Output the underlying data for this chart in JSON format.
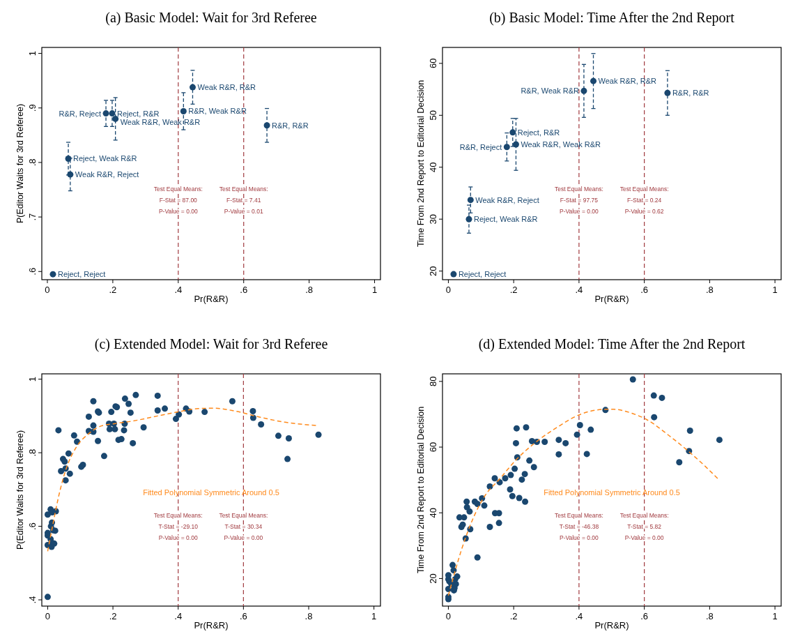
{
  "chart_data": [
    {
      "type": "scatter",
      "title": "(a) Basic Model: Wait for 3rd Referee",
      "xlabel": "Pr(R&R)",
      "ylabel": "P(Editor Waits for 3rd Referee)",
      "marker": "circle",
      "xlim": [
        -0.017,
        1.018
      ],
      "xticks": [
        {
          "value": 0,
          "label": "0"
        },
        {
          "value": 0.2,
          "label": ".2"
        },
        {
          "value": 0.4,
          "label": ".4"
        },
        {
          "value": 0.6,
          "label": ".6"
        },
        {
          "value": 0.8,
          "label": ".8"
        },
        {
          "value": 1,
          "label": "1"
        }
      ],
      "ylim": [
        0.585,
        1.011
      ],
      "yticks": [
        {
          "value": 0.6,
          "label": ".6"
        },
        {
          "value": 0.7,
          "label": ".7"
        },
        {
          "value": 0.8,
          "label": ".8"
        },
        {
          "value": 0.9,
          "label": ".9"
        },
        {
          "value": 1,
          "label": "1"
        }
      ],
      "series": [
        {
          "type": "scatter",
          "color": "#1a476f",
          "x": [
            0.017,
            0.064,
            0.07,
            0.179,
            0.198,
            0.208,
            0.416,
            0.444,
            0.671
          ],
          "values": [
            0.595,
            0.807,
            0.778,
            0.89,
            0.89,
            0.88,
            0.894,
            0.938,
            0.868
          ],
          "errors": [
            null,
            0.03,
            0.03,
            0.024,
            0.024,
            0.039,
            0.034,
            0.031,
            0.031
          ]
        }
      ],
      "annotations": [
        "Test Equal Means:\nF-Stat = 87.00\nP-Value = 0.00",
        "Test Equal Means:\nF-Stat = 7.41\nP-Value = 0.01",
        {
          "text": "Reject, Reject",
          "x": 0.017,
          "y": 0.595
        },
        {
          "text": "Reject, Weak R&R",
          "x": 0.064,
          "y": 0.807
        },
        {
          "text": "Weak R&R, Reject",
          "x": 0.07,
          "y": 0.778
        },
        {
          "text": "R&R, Reject",
          "x": 0.179,
          "y": 0.89
        },
        {
          "text": "Reject, R&R",
          "x": 0.198,
          "y": 0.89
        },
        {
          "text": "Weak R&R, Weak R&R",
          "x": 0.208,
          "y": 0.88
        },
        {
          "text": "R&R, Weak R&R",
          "x": 0.416,
          "y": 0.894
        },
        {
          "text": "Weak R&R, R&R",
          "x": 0.444,
          "y": 0.938
        },
        {
          "text": "R&R, R&R",
          "x": 0.671,
          "y": 0.868
        }
      ],
      "ref_lines": [
        {
          "axis": "x",
          "value": 0.4,
          "color": "#a0393e",
          "line_style": "dashed"
        },
        {
          "axis": "x",
          "value": 0.6,
          "color": "#a0393e",
          "line_style": "dashed"
        }
      ]
    },
    {
      "type": "scatter",
      "title": "(b) Basic Model: Time After the 2nd Report",
      "xlabel": "Pr(R&R)",
      "ylabel": "Time From 2nd Report to Editorial Decision",
      "marker": "circle",
      "xlim": [
        -0.018,
        1.019
      ],
      "xticks": [
        {
          "value": 0,
          "label": "0"
        },
        {
          "value": 0.2,
          "label": ".2"
        },
        {
          "value": 0.4,
          "label": ".4"
        },
        {
          "value": 0.6,
          "label": ".6"
        },
        {
          "value": 0.8,
          "label": ".8"
        },
        {
          "value": 1,
          "label": "1"
        }
      ],
      "ylim": [
        18.34,
        63.07
      ],
      "yticks": [
        20,
        30,
        40,
        50,
        60
      ],
      "series": [
        {
          "type": "scatter",
          "color": "#1a476f",
          "x": [
            0.016,
            0.063,
            0.068,
            0.179,
            0.197,
            0.207,
            0.415,
            0.444,
            0.671
          ],
          "values": [
            19.4,
            30.0,
            33.7,
            43.9,
            46.7,
            44.4,
            54.7,
            56.6,
            54.3
          ],
          "errors": [
            null,
            2.7,
            2.5,
            2.7,
            2.7,
            5.0,
            5.1,
            5.3,
            4.3
          ]
        }
      ],
      "annotations": [
        "Test Equal Means:\nF-Stat = 97.75\nP-Value = 0.00",
        "Test Equal Means:\nF-Stat = 0.24\nP-Value = 0.62",
        {
          "text": "Reject, Reject",
          "x": 0.016,
          "y": 19.4
        },
        {
          "text": "Reject, Weak R&R",
          "x": 0.063,
          "y": 30.0
        },
        {
          "text": "Weak R&R, Reject",
          "x": 0.068,
          "y": 33.7
        },
        {
          "text": "R&R, Reject",
          "x": 0.179,
          "y": 43.9
        },
        {
          "text": "Reject, R&R",
          "x": 0.197,
          "y": 46.7
        },
        {
          "text": "Weak R&R, Weak R&R",
          "x": 0.207,
          "y": 44.4
        },
        {
          "text": "R&R, Weak R&R",
          "x": 0.415,
          "y": 54.7
        },
        {
          "text": "Weak R&R, R&R",
          "x": 0.444,
          "y": 56.6
        },
        {
          "text": "R&R, R&R",
          "x": 0.671,
          "y": 54.3
        }
      ],
      "ref_lines": [
        {
          "axis": "x",
          "value": 0.4,
          "color": "#a0393e",
          "line_style": "dashed"
        },
        {
          "axis": "x",
          "value": 0.6,
          "color": "#a0393e",
          "line_style": "dashed"
        }
      ]
    },
    {
      "type": "scatter",
      "title": "(c) Extended Model: Wait for 3rd Referee",
      "xlabel": "Pr(R&R)",
      "ylabel": "P(Editor Waits for 3rd Referee)",
      "marker": "circle",
      "xlim": [
        -0.018,
        1.02
      ],
      "xticks": [
        {
          "value": 0,
          "label": "0"
        },
        {
          "value": 0.2,
          "label": ".2"
        },
        {
          "value": 0.4,
          "label": ".4"
        },
        {
          "value": 0.6,
          "label": ".6"
        },
        {
          "value": 0.8,
          "label": ".8"
        },
        {
          "value": 1,
          "label": "1"
        }
      ],
      "ylim": [
        0.383,
        1.0145
      ],
      "yticks": [
        {
          "value": 0.4,
          "label": ".4"
        },
        {
          "value": 0.6,
          "label": ".6"
        },
        {
          "value": 0.8,
          "label": ".8"
        },
        {
          "value": 1,
          "label": "1"
        }
      ],
      "series": [
        {
          "type": "scatter",
          "color": "#1a476f",
          "x": [
            0,
            0,
            0,
            0,
            0,
            0.009,
            0.014,
            0.013,
            0.01,
            0.017,
            0.023,
            0.009,
            0.013,
            0.012,
            0.02,
            0.025,
            0.033,
            0.041,
            0.047,
            0.052,
            0.055,
            0.055,
            0.064,
            0.068,
            0.081,
            0.09,
            0.103,
            0.108,
            0.126,
            0.126,
            0.14,
            0.14,
            0.14,
            0.154,
            0.157,
            0.154,
            0.173,
            0.188,
            0.19,
            0.195,
            0.203,
            0.206,
            0.208,
            0.212,
            0.217,
            0.226,
            0.236,
            0.234,
            0.237,
            0.248,
            0.254,
            0.261,
            0.27,
            0.294,
            0.337,
            0.337,
            0.359,
            0.393,
            0.402,
            0.424,
            0.434,
            0.481,
            0.566,
            0.629,
            0.63,
            0.654,
            0.707,
            0.739,
            0.735,
            0.83
          ],
          "values": [
            0.408,
            0.632,
            0.582,
            0.575,
            0.549,
            0.646,
            0.638,
            0.61,
            0.6,
            0.589,
            0.588,
            0.565,
            0.555,
            0.544,
            0.553,
            0.641,
            0.861,
            0.75,
            0.783,
            0.776,
            0.757,
            0.725,
            0.798,
            0.743,
            0.847,
            0.83,
            0.762,
            0.767,
            0.898,
            0.859,
            0.874,
            0.857,
            0.94,
            0.912,
            0.909,
            0.832,
            0.791,
            0.879,
            0.864,
            0.911,
            0.879,
            0.864,
            0.926,
            0.924,
            0.835,
            0.837,
            0.879,
            0.861,
            0.947,
            0.933,
            0.909,
            0.826,
            0.957,
            0.869,
            0.955,
            0.915,
            0.92,
            0.892,
            0.904,
            0.92,
            0.912,
            0.911,
            0.94,
            0.913,
            0.895,
            0.877,
            0.846,
            0.839,
            0.783,
            0.849
          ]
        },
        {
          "type": "line",
          "name": "Fitted Polynomial Symmetric Around 0.5",
          "color": "#ff8a1c",
          "line_style": "dashed",
          "marker": "none",
          "x": [
            0,
            0.017,
            0.033,
            0.056,
            0.087,
            0.126,
            0.165,
            0.204,
            0.259,
            0.337,
            0.399,
            0.462,
            0.509,
            0.571,
            0.649,
            0.727,
            0.824
          ],
          "values": [
            0.532,
            0.61,
            0.679,
            0.755,
            0.814,
            0.852,
            0.873,
            0.879,
            0.886,
            0.9,
            0.911,
            0.92,
            0.921,
            0.914,
            0.897,
            0.883,
            0.874
          ]
        }
      ],
      "annotations": [
        "Test Equal Means:\nT-Stat = -29.10\nP-Value = 0.00",
        "Test Equal Means:\nT-Stat = 30.34\nP-Value = 0.00"
      ],
      "ref_lines": [
        {
          "axis": "x",
          "value": 0.4,
          "color": "#a0393e",
          "line_style": "dashed"
        },
        {
          "axis": "x",
          "value": 0.6,
          "color": "#a0393e",
          "line_style": "dashed"
        }
      ]
    },
    {
      "type": "scatter",
      "title": "(d) Extended Model: Time After the 2nd Report",
      "xlabel": "Pr(R&R)",
      "ylabel": "Time From 2nd Report to Editorial Decision",
      "marker": "circle",
      "xlim": [
        -0.018,
        1.019
      ],
      "xticks": [
        {
          "value": 0,
          "label": "0"
        },
        {
          "value": 0.2,
          "label": ".2"
        },
        {
          "value": 0.4,
          "label": ".4"
        },
        {
          "value": 0.6,
          "label": ".6"
        },
        {
          "value": 0.8,
          "label": ".8"
        },
        {
          "value": 1,
          "label": "1"
        }
      ],
      "ylim": [
        11.6,
        82.3
      ],
      "yticks": [
        20,
        40,
        60,
        80
      ],
      "series": [
        {
          "type": "scatter",
          "color": "#1a476f",
          "x": [
            0,
            0,
            0,
            0,
            0,
            0.003,
            0.009,
            0.013,
            0.016,
            0.017,
            0.019,
            0.021,
            0.023,
            0.027,
            0.034,
            0.04,
            0.044,
            0.048,
            0.053,
            0.056,
            0.057,
            0.065,
            0.067,
            0.081,
            0.089,
            0.089,
            0.103,
            0.11,
            0.127,
            0.127,
            0.142,
            0.143,
            0.155,
            0.155,
            0.157,
            0.174,
            0.189,
            0.191,
            0.196,
            0.203,
            0.207,
            0.209,
            0.211,
            0.217,
            0.225,
            0.234,
            0.235,
            0.238,
            0.248,
            0.256,
            0.262,
            0.271,
            0.295,
            0.338,
            0.338,
            0.359,
            0.394,
            0.403,
            0.424,
            0.436,
            0.481,
            0.565,
            0.629,
            0.654,
            0.63,
            0.707,
            0.737,
            0.74,
            0.83
          ],
          "values": [
            13.7,
            14.4,
            16.8,
            19.8,
            21.0,
            19.1,
            18.3,
            24.1,
            22.5,
            16.4,
            17.1,
            19.8,
            18.3,
            20.6,
            38.6,
            35.7,
            36.4,
            38.6,
            32.2,
            43.4,
            41.7,
            40.4,
            35.0,
            43.4,
            42.7,
            26.4,
            44.4,
            42.2,
            48.0,
            35.7,
            50.5,
            39.9,
            39.9,
            36.9,
            49.3,
            50.5,
            47.1,
            51.5,
            45.1,
            53.4,
            61.2,
            65.7,
            56.9,
            44.5,
            50.1,
            51.8,
            43.4,
            66.0,
            55.9,
            61.8,
            53.9,
            61.6,
            61.6,
            62.2,
            57.8,
            61.2,
            63.8,
            66.7,
            57.9,
            65.3,
            71.3,
            80.6,
            75.7,
            75.0,
            69.1,
            55.4,
            58.8,
            65.0,
            62.2
          ]
        },
        {
          "type": "line",
          "name": "Fitted Polynomial Symmetric Around 0.5",
          "color": "#ff8a1c",
          "line_style": "dashed",
          "marker": "none",
          "x": [
            0,
            0.017,
            0.04,
            0.071,
            0.11,
            0.157,
            0.211,
            0.273,
            0.328,
            0.405,
            0.483,
            0.506,
            0.562,
            0.607,
            0.677,
            0.739,
            0.786,
            0.83
          ],
          "values": [
            14.8,
            21.0,
            28.7,
            37.2,
            44.9,
            50.3,
            56.5,
            61.9,
            65.7,
            70.0,
            71.5,
            71.5,
            70.3,
            68.4,
            63.4,
            58.4,
            54.2,
            49.9
          ]
        }
      ],
      "annotations": [
        "Test Equal Means:\nT-Stat = -46.38\nP-Value = 0.00",
        "Test Equal Means:\nT-Stat = 5.82\nP-Value = 0.00"
      ],
      "ref_lines": [
        {
          "axis": "x",
          "value": 0.4,
          "color": "#a0393e",
          "line_style": "dashed"
        },
        {
          "axis": "x",
          "value": 0.6,
          "color": "#a0393e",
          "line_style": "dashed"
        }
      ]
    }
  ]
}
